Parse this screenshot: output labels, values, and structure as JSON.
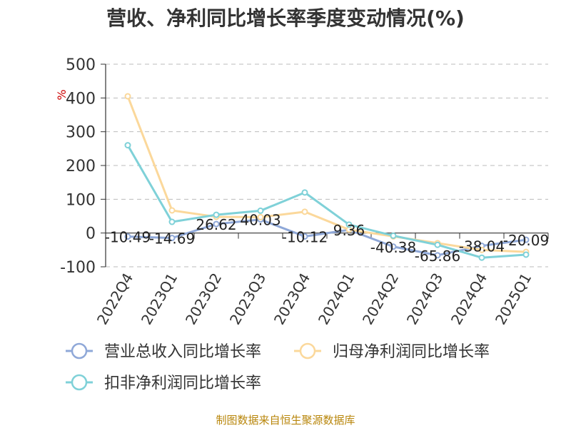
{
  "title": "营收、净利同比增长率季度变动情况(%)",
  "source": "制图数据来自恒生聚源数据库",
  "chart_data": {
    "type": "line",
    "title": "营收、净利同比增长率季度变动情况(%)",
    "unit_label": "%",
    "categories": [
      "2022Q4",
      "2023Q1",
      "2023Q2",
      "2023Q3",
      "2023Q4",
      "2024Q1",
      "2024Q2",
      "2024Q3",
      "2024Q4",
      "2025Q1"
    ],
    "ylim": [
      -100,
      500
    ],
    "yticks": [
      "500",
      "400",
      "300",
      "200",
      "100",
      "0",
      "-100"
    ],
    "grid": true,
    "legend_position": "bottom",
    "series": [
      {
        "name": "营业总收入同比增长率",
        "color": "#8fa8d8",
        "values": [
          -10.49,
          -14.69,
          26.62,
          40.03,
          -10.12,
          9.36,
          -40.38,
          -65.86,
          -38.04,
          -20.09
        ],
        "labels": [
          "-10.49",
          "-14.69",
          "26.62",
          "40.03",
          "-10.12",
          "9.36",
          "-40.38",
          "-65.86",
          "-38.04",
          "-20.09"
        ]
      },
      {
        "name": "归母净利润同比增长率",
        "color": "#fbd89b",
        "values": [
          405,
          67,
          48,
          47,
          63,
          10,
          -10,
          -30,
          -50,
          -56
        ]
      },
      {
        "name": "扣非净利润同比增长率",
        "color": "#7fd1d8",
        "values": [
          260,
          33,
          54,
          66,
          120,
          25,
          -8,
          -35,
          -73,
          -64
        ]
      }
    ]
  }
}
